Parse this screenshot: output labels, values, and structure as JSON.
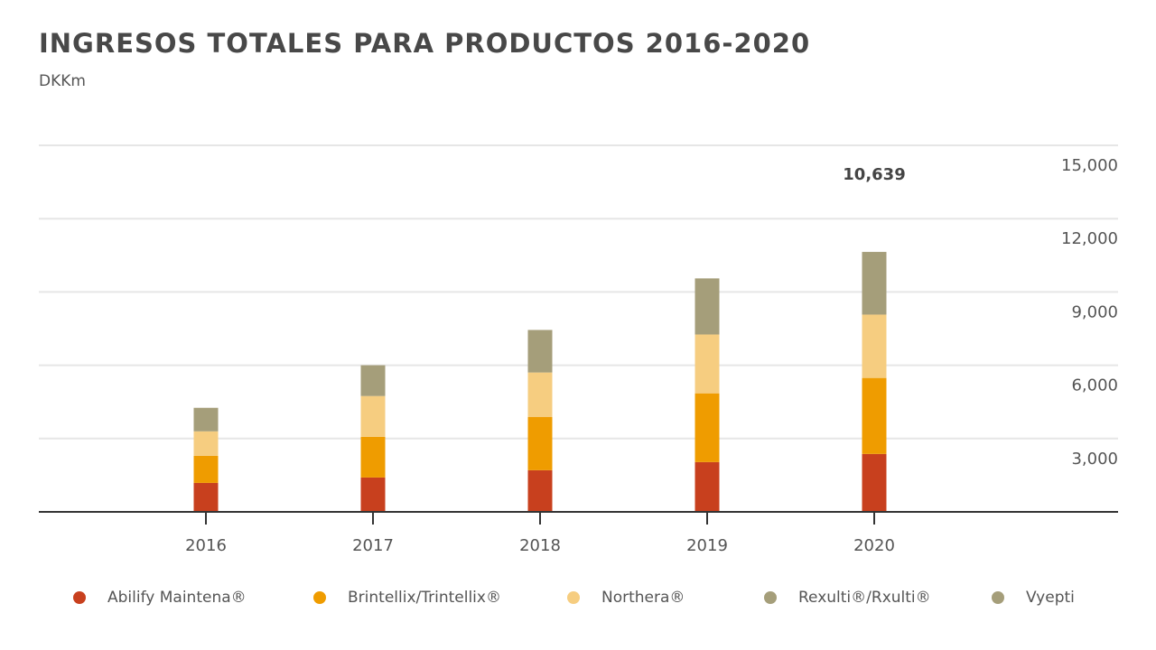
{
  "chart_data": {
    "type": "bar",
    "stacked": true,
    "title": "INGRESOS TOTALES PARA PRODUCTOS 2016-2020",
    "subtitle": "DKKm",
    "xlabel": "",
    "ylabel": "DKKm",
    "ylim": [
      0,
      15000
    ],
    "yticks": [
      3000,
      6000,
      9000,
      12000,
      15000
    ],
    "ytick_labels": [
      "3,000",
      "6,000",
      "9,000",
      "12,000",
      "15,000"
    ],
    "grid": true,
    "y_axis_position": "right",
    "legend_position": "bottom",
    "categories": [
      "2016",
      "2017",
      "2018",
      "2019",
      "2020"
    ],
    "series": [
      {
        "name": "Abilify Maintena®",
        "color": "#c8401e",
        "values": [
          1185,
          1407,
          1704,
          2037,
          2370
        ]
      },
      {
        "name": "Brintellix/Trintellix®",
        "color": "#ef9c00",
        "values": [
          1111,
          1667,
          2185,
          2815,
          3111
        ]
      },
      {
        "name": "Northera®",
        "color": "#f6cd80",
        "values": [
          1000,
          1667,
          1815,
          2407,
          2593
        ]
      },
      {
        "name": "Rexulti®/Rxulti®",
        "color": "#a59e7a",
        "values": [
          963,
          1259,
          1741,
          2296,
          2565
        ]
      },
      {
        "name": "Vyepti",
        "color": "#a59e7a",
        "values": [
          0,
          0,
          0,
          0,
          0
        ]
      }
    ],
    "annotations": [
      {
        "category": "2020",
        "text": "10,639"
      }
    ]
  },
  "colors": {
    "gridline": "#e6e6e6",
    "axis": "#333333",
    "text": "#555555"
  }
}
